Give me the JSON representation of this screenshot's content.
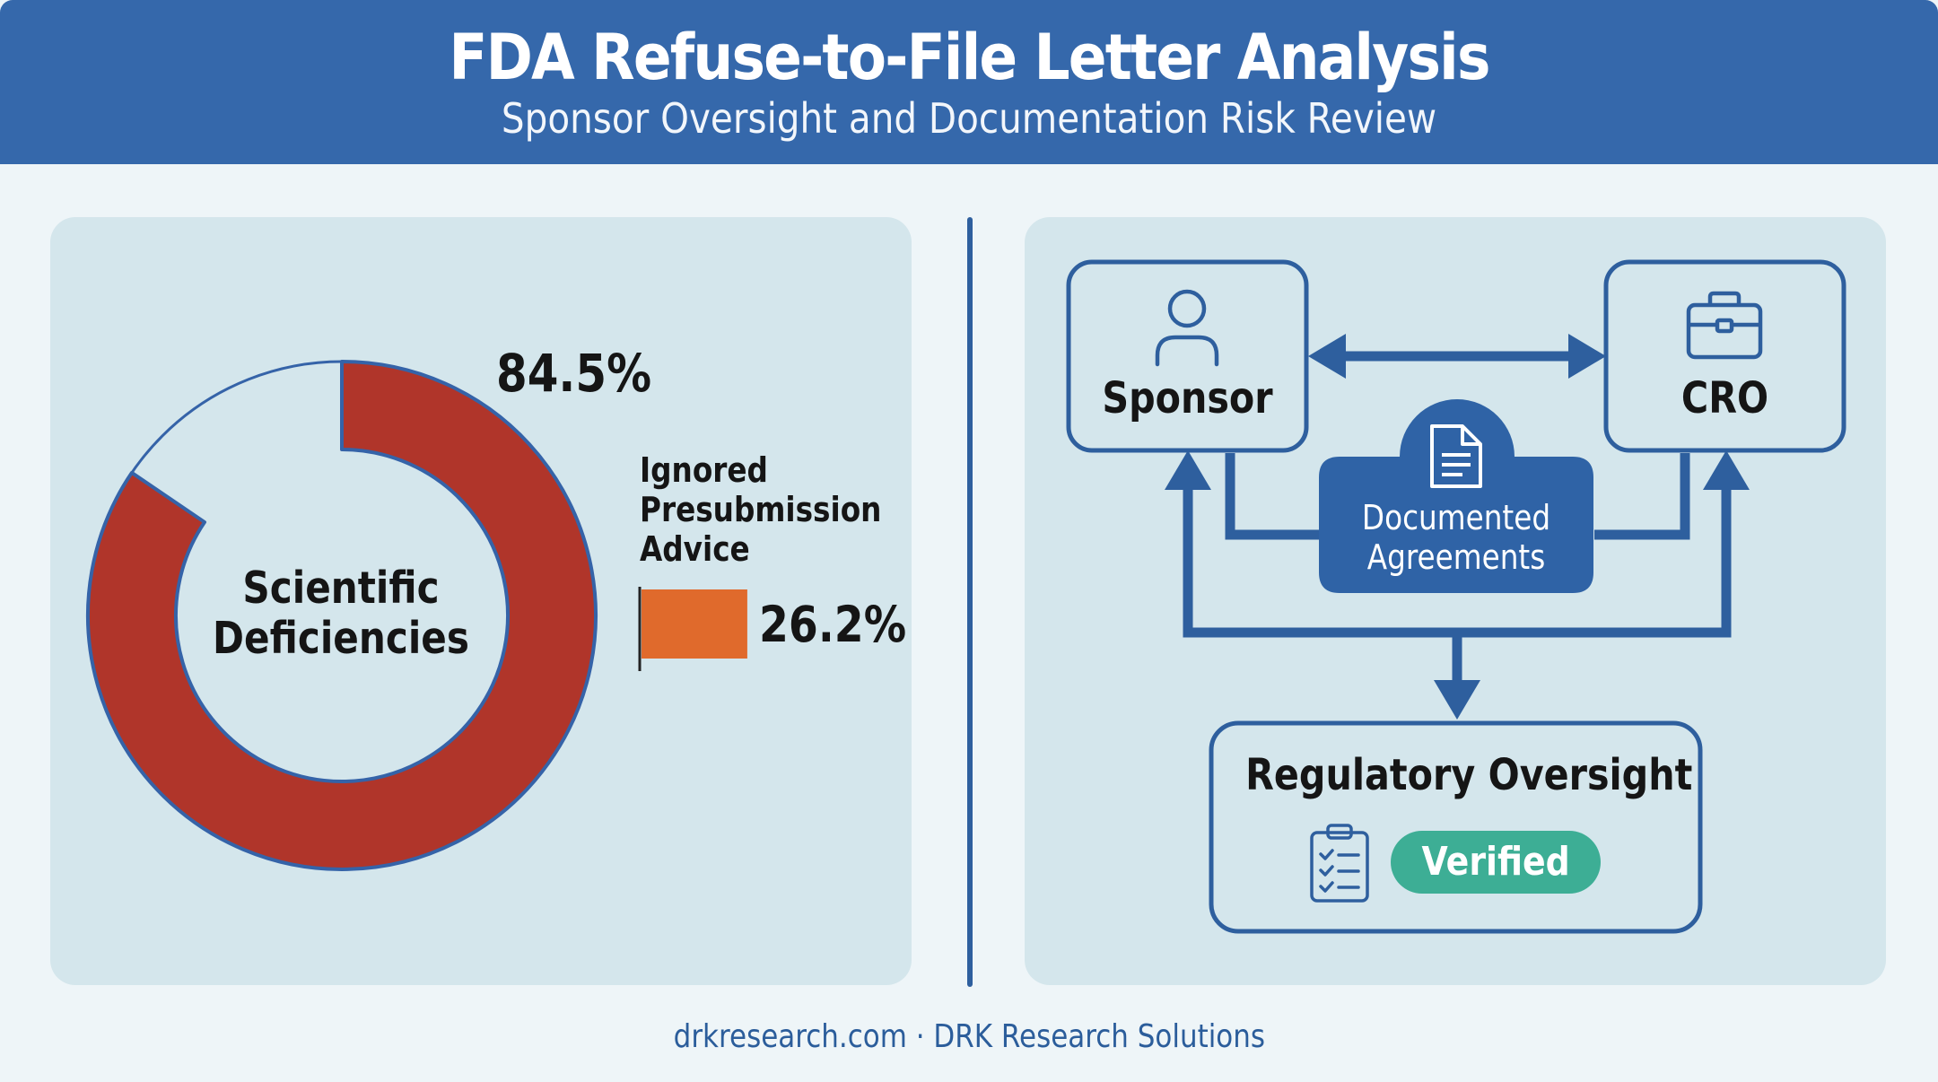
{
  "header": {
    "title": "FDA Refuse-to-File Letter Analysis",
    "subtitle": "Sponsor Oversight and Documentation Risk Review"
  },
  "chart_data": {
    "type": "donut",
    "categories": [
      "Scientific Deficiencies",
      "Ignored Presubmission Advice"
    ],
    "values": [
      84.5,
      26.2
    ],
    "value_labels": [
      "84.5%",
      "26.2%"
    ],
    "donut_center_label": "Scientific Deficiencies",
    "bar_label": "Ignored Presubmission Advice",
    "unit": "%",
    "colors": {
      "donut": "#b0352a",
      "bar": "#e06a2c",
      "outline": "#3563a8"
    }
  },
  "diagram": {
    "sponsor": {
      "label": "Sponsor",
      "icon": "person-icon"
    },
    "cro": {
      "label": "CRO",
      "icon": "briefcase-icon"
    },
    "agreements": {
      "label": "Documented Agreements",
      "icon": "document-icon"
    },
    "oversight": {
      "label": "Regulatory Oversight",
      "icon": "clipboard-checklist-icon"
    },
    "status_badge": "Verified",
    "colors": {
      "primary": "#2e5f9e",
      "badge": "#3dae95"
    }
  },
  "footer": {
    "text": "drkresearch.com · DRK Research Solutions"
  }
}
